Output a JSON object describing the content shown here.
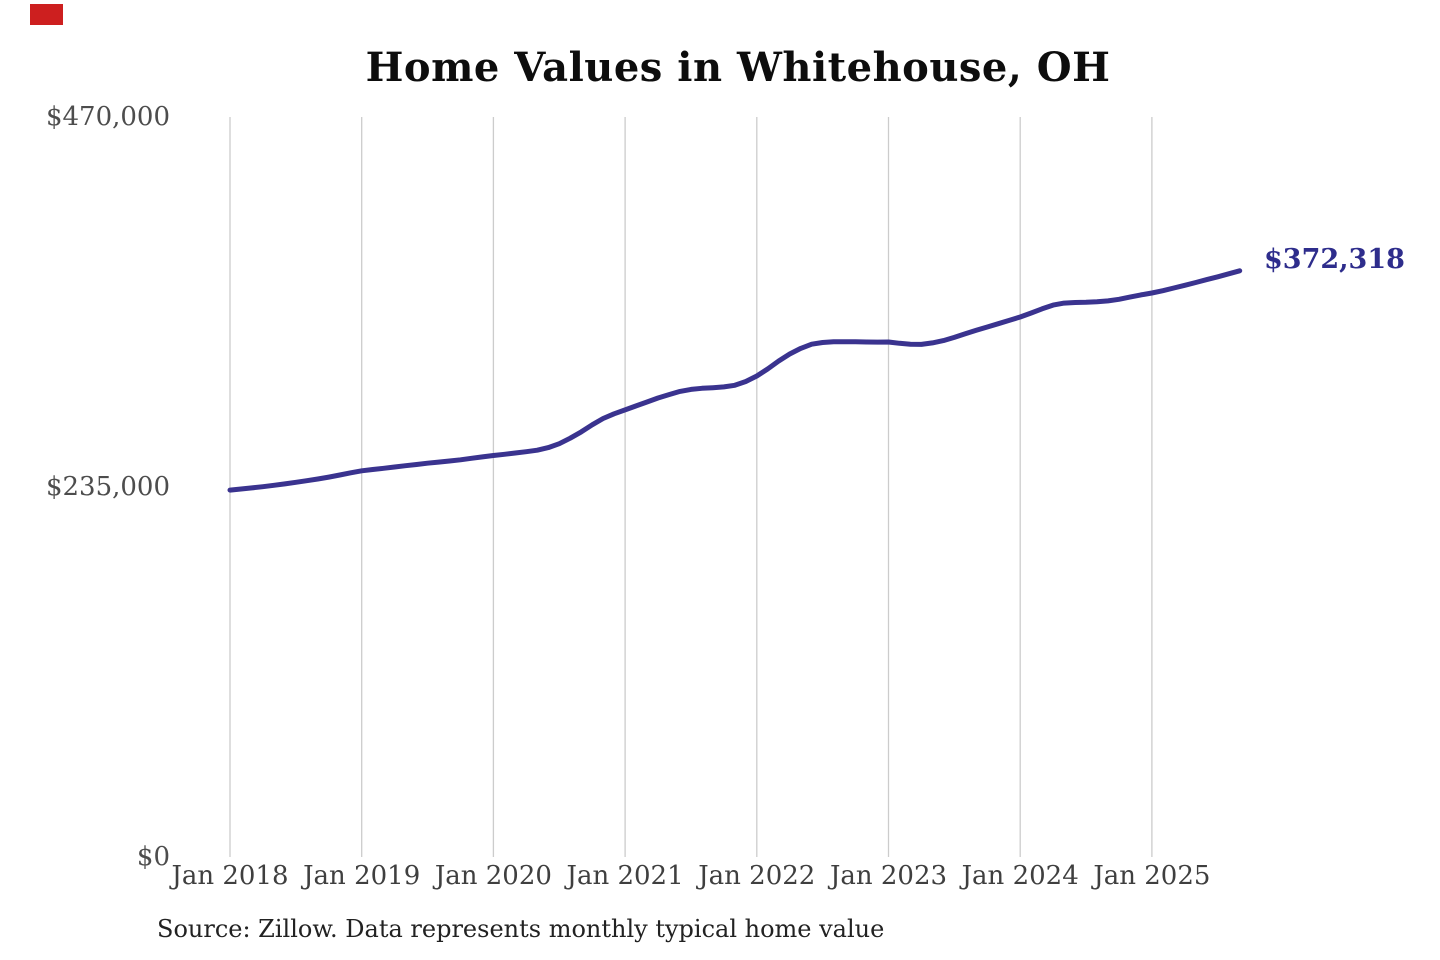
{
  "chart_data": {
    "type": "line",
    "title": "Home Values in Whitehouse, OH",
    "source_note": "Source: Zillow. Data represents monthly typical home value",
    "end_label": "$372,318",
    "end_value": 372318,
    "xlabel": "",
    "ylabel": "",
    "ylim": [
      0,
      470000
    ],
    "grid": "vertical-only",
    "legend": "none",
    "x_ticks": [
      "Jan 2018",
      "Jan 2019",
      "Jan 2020",
      "Jan 2021",
      "Jan 2022",
      "Jan 2023",
      "Jan 2024",
      "Jan 2025"
    ],
    "y_ticks": [
      {
        "value": 470000,
        "label": "$470,000"
      },
      {
        "value": 235000,
        "label": "$235,000"
      },
      {
        "value": 0,
        "label": "$0"
      }
    ],
    "series": [
      {
        "name": "Monthly typical home value",
        "start_month": "2018-01",
        "frequency": "monthly",
        "values": [
          233000,
          233700,
          234400,
          235200,
          236100,
          237000,
          238000,
          239000,
          240100,
          241300,
          242600,
          244000,
          245300,
          246100,
          246900,
          247700,
          248500,
          249300,
          250100,
          250800,
          251500,
          252300,
          253200,
          254100,
          255000,
          255800,
          256600,
          257400,
          258400,
          260000,
          262500,
          266000,
          270000,
          274500,
          278500,
          281500,
          284000,
          286500,
          289000,
          291500,
          293700,
          295700,
          297000,
          297700,
          298100,
          298600,
          299600,
          302000,
          305500,
          310000,
          315000,
          319500,
          323000,
          325700,
          326800,
          327200,
          327300,
          327200,
          327100,
          327000,
          327100,
          326300,
          325700,
          325600,
          326500,
          328000,
          330000,
          332300,
          334500,
          336600,
          338700,
          340800,
          343000,
          345500,
          348200,
          350500,
          351800,
          352200,
          352300,
          352600,
          353200,
          354200,
          355600,
          357000,
          358200,
          359700,
          361400,
          363100,
          364900,
          366700,
          368500,
          370400,
          372318
        ]
      }
    ]
  },
  "colors": {
    "line": "#3a338f",
    "end_label": "#2e2d8c",
    "gridline": "#cccccc",
    "y_axis_label": "#4d4d4d",
    "x_axis_label": "#3f3f3f",
    "title": "#0d0d0d",
    "source": "#222222",
    "red_marker": "#cd1f1f"
  }
}
